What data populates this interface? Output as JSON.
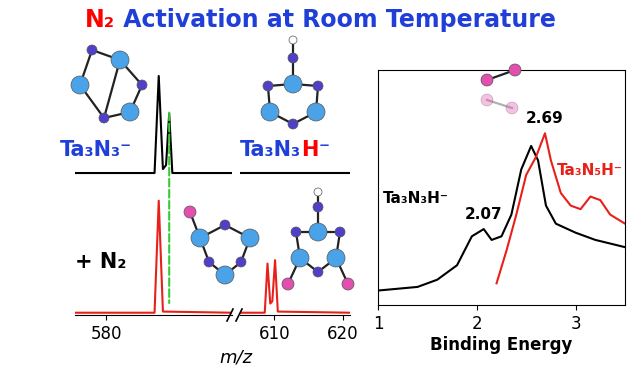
{
  "title": [
    {
      "text": "N₂",
      "color": "#ff0000"
    },
    {
      "text": " Activation at Room Temperature",
      "color": "#1f3fd8"
    }
  ],
  "chart_data": [
    {
      "type": "line",
      "xlim": [
        577,
        592
      ],
      "xticks": [],
      "ylim": [
        0,
        1.05
      ],
      "yticks": [],
      "tick_labels": false,
      "series": [
        {
          "color": "#000000",
          "x": [
            577,
            584.6,
            585.0,
            585.4,
            585.7,
            586.0,
            586.3,
            592
          ],
          "values": [
            0.02,
            0.02,
            1.0,
            0.06,
            0.1,
            0.62,
            0.02,
            0.02
          ]
        }
      ],
      "reference_line": {
        "x": 586,
        "color": "#33cc33",
        "line_style": "dashed"
      },
      "annotations": [
        [
          {
            "text": "Ta₃N₃⁻",
            "color": "#1f3fd8"
          }
        ]
      ]
    },
    {
      "type": "line",
      "xlim": [
        605,
        621
      ],
      "xticks": [],
      "ylim": [
        0,
        1.05
      ],
      "yticks": [],
      "tick_labels": false,
      "series": [
        {
          "color": "#000000",
          "x": [
            605,
            621
          ],
          "values": [
            0.02,
            0.02
          ]
        }
      ],
      "annotations": [
        [
          {
            "text": "Ta₃N₃",
            "color": "#1f3fd8"
          },
          {
            "text": "H",
            "color": "#ff0000"
          },
          {
            "text": "⁻",
            "color": "#1f3fd8"
          }
        ]
      ]
    },
    {
      "type": "line",
      "xlim": [
        577,
        592
      ],
      "xticks": [
        580
      ],
      "ylim": [
        0,
        1.05
      ],
      "yticks": [],
      "tick_labels": "x",
      "series": [
        {
          "color": "#e8201a",
          "x": [
            577,
            584.6,
            585.0,
            585.4,
            592
          ],
          "values": [
            0.02,
            0.02,
            1.0,
            0.03,
            0.02
          ]
        }
      ],
      "annotations": [
        [
          {
            "text": "+ N₂",
            "color": "#000000"
          }
        ]
      ]
    },
    {
      "type": "line",
      "xlim": [
        605,
        621
      ],
      "xticks": [
        610,
        620
      ],
      "ylim": [
        0,
        1.05
      ],
      "yticks": [],
      "tick_labels": "x",
      "x_label": "m/z",
      "series": [
        {
          "color": "#e8201a",
          "x": [
            605,
            608.6,
            609.0,
            609.4,
            609.7,
            610.1,
            610.5,
            621
          ],
          "values": [
            0.02,
            0.02,
            0.45,
            0.1,
            0.12,
            0.48,
            0.03,
            0.02
          ]
        }
      ]
    },
    {
      "type": "line",
      "xlim": [
        1,
        3.5
      ],
      "xticks": [
        1,
        2,
        3
      ],
      "ylim": [
        0,
        1.3
      ],
      "yticks": [],
      "tick_labels": "x",
      "x_label": "Binding Energy",
      "series": [
        {
          "name": "Ta₃N₃H⁻",
          "color": "#000000",
          "peak_labels": [
            2.07
          ],
          "x": [
            1.0,
            1.2,
            1.4,
            1.6,
            1.8,
            1.95,
            2.07,
            2.15,
            2.25,
            2.35,
            2.45,
            2.55,
            2.62,
            2.7,
            2.8,
            3.0,
            3.2,
            3.5
          ],
          "values": [
            0.08,
            0.09,
            0.1,
            0.14,
            0.22,
            0.38,
            0.42,
            0.36,
            0.38,
            0.5,
            0.75,
            0.88,
            0.8,
            0.55,
            0.45,
            0.4,
            0.36,
            0.32
          ]
        },
        {
          "name": "Ta₃N₅H⁻",
          "color": "#e8201a",
          "peak_labels": [
            2.69
          ],
          "x": [
            2.2,
            2.3,
            2.4,
            2.5,
            2.6,
            2.69,
            2.75,
            2.85,
            2.95,
            3.05,
            3.15,
            3.25,
            3.35,
            3.5
          ],
          "values": [
            0.12,
            0.3,
            0.5,
            0.72,
            0.82,
            0.95,
            0.8,
            0.62,
            0.55,
            0.53,
            0.6,
            0.58,
            0.5,
            0.45
          ]
        }
      ]
    }
  ]
}
